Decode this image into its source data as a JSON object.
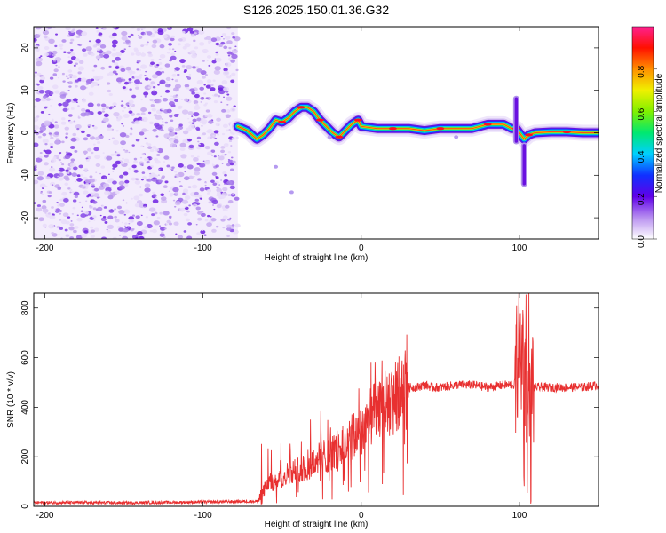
{
  "figure": {
    "title": "S126.2025.150.01.36.G32"
  },
  "chart_data": [
    {
      "type": "heatmap",
      "xlabel": "Height of straight line (km)",
      "ylabel": "Frequency (Hz)",
      "xlim": [
        -207,
        150
      ],
      "ylim": [
        -25,
        25
      ],
      "xticks": [
        -200,
        -100,
        0,
        100
      ],
      "yticks": [
        -20,
        -10,
        0,
        10,
        20
      ],
      "noise_region": {
        "x": [
          -207,
          -78
        ],
        "y": [
          -25,
          25
        ]
      },
      "ridge": {
        "x": [
          -78,
          -72,
          -66,
          -62,
          -58,
          -54,
          -50,
          -46,
          -42,
          -38,
          -34,
          -30,
          -26,
          -22,
          -18,
          -14,
          -10,
          -6,
          -2,
          0,
          10,
          20,
          30,
          40,
          50,
          60,
          70,
          80,
          90,
          95,
          98,
          100,
          103,
          106,
          110,
          120,
          130,
          140,
          150
        ],
        "y": [
          1.5,
          0.5,
          -1.5,
          -0.5,
          1,
          3,
          2.5,
          3.5,
          5,
          6,
          6,
          5,
          3,
          1.5,
          0,
          -1,
          0.5,
          2,
          3,
          1.5,
          1,
          1,
          1,
          0.5,
          1,
          1,
          1,
          2,
          2,
          1,
          1,
          0,
          -1.5,
          -0.5,
          0,
          0.2,
          0.2,
          0,
          0
        ]
      },
      "colorbar": {
        "label": "Normalized spectral amplitude",
        "range": [
          0,
          1
        ],
        "ticks": [
          0.0,
          0.2,
          0.4,
          0.6,
          0.8
        ],
        "colors": [
          "#ffffff",
          "#b890f0",
          "#6000e8",
          "#1030ff",
          "#00d0ff",
          "#00e870",
          "#80f000",
          "#f0f000",
          "#ff9000",
          "#ff1000",
          "#ff2090"
        ]
      }
    },
    {
      "type": "line",
      "xlabel": "Height of straight line (km)",
      "ylabel": "SNR (10 * v/v)",
      "xlim": [
        -207,
        150
      ],
      "ylim": [
        0,
        860
      ],
      "xticks": [
        -200,
        -100,
        0,
        100
      ],
      "yticks": [
        0,
        200,
        400,
        600,
        800
      ],
      "color": "#e83030",
      "series": [
        {
          "x": [
            -207,
            -180,
            -150,
            -120,
            -90,
            -70,
            -65,
            -62,
            -58,
            -55,
            -50,
            -45,
            -40,
            -35,
            -30,
            -25,
            -20,
            -15,
            -10,
            -5,
            0,
            5,
            10,
            15,
            20,
            25,
            30,
            35,
            40,
            45,
            50,
            60,
            70,
            80,
            90,
            98,
            100,
            101,
            102,
            103,
            104,
            105,
            106,
            107,
            108,
            110,
            120,
            130,
            140,
            150
          ],
          "y": [
            15,
            15,
            14,
            16,
            18,
            20,
            20,
            60,
            100,
            90,
            120,
            140,
            150,
            150,
            180,
            200,
            210,
            230,
            250,
            280,
            310,
            350,
            380,
            410,
            430,
            460,
            480,
            480,
            490,
            480,
            480,
            490,
            490,
            480,
            490,
            490,
            800,
            400,
            780,
            300,
            820,
            100,
            780,
            200,
            480,
            480,
            480,
            480,
            480,
            490
          ]
        }
      ]
    }
  ]
}
